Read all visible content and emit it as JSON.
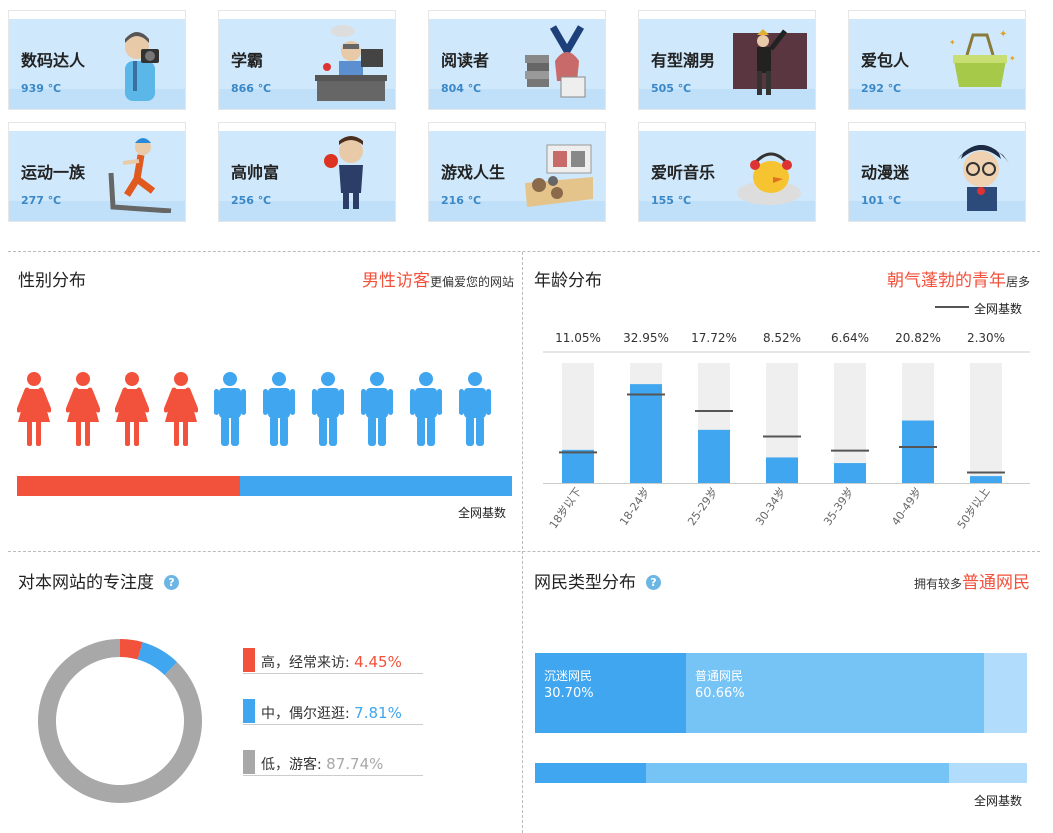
{
  "interest_cards": [
    {
      "name": "数码达人",
      "temp": "939 ℃",
      "icon": "camera-man-icon"
    },
    {
      "name": "学霸",
      "temp": "866 ℃",
      "icon": "student-desk-icon"
    },
    {
      "name": "阅读者",
      "temp": "804 ℃",
      "icon": "reader-books-icon"
    },
    {
      "name": "有型潮男",
      "temp": "505 ℃",
      "icon": "fashion-man-icon"
    },
    {
      "name": "爱包人",
      "temp": "292 ℃",
      "icon": "handbag-icon"
    },
    {
      "name": "运动一族",
      "temp": "277 ℃",
      "icon": "treadmill-runner-icon"
    },
    {
      "name": "高帅富",
      "temp": "256 ℃",
      "icon": "rich-man-icon"
    },
    {
      "name": "游戏人生",
      "temp": "216 ℃",
      "icon": "game-board-icon"
    },
    {
      "name": "爱听音乐",
      "temp": "155 ℃",
      "icon": "music-chick-icon"
    },
    {
      "name": "动漫迷",
      "temp": "101 ℃",
      "icon": "anime-boy-icon"
    }
  ],
  "gender": {
    "title": "性别分布",
    "note_highlight": "男性访客",
    "note_text": "更偏爱您的网站",
    "female_count": 4,
    "male_count": 6,
    "female_share": 0.45,
    "female_color": "#f2513b",
    "male_color": "#3fa6ef",
    "base_label": "全网基数"
  },
  "age": {
    "title": "年龄分布",
    "note_highlight": "朝气蓬勃的青年",
    "note_text": "居多",
    "legend_label": "全网基数"
  },
  "chart_data": {
    "type": "bar",
    "categories": [
      "18岁以下",
      "18-24岁",
      "25-29岁",
      "30-34岁",
      "35-39岁",
      "40-49岁",
      "50岁以上"
    ],
    "value_labels": [
      "11.05%",
      "32.95%",
      "17.72%",
      "8.52%",
      "6.64%",
      "20.82%",
      "2.30%"
    ],
    "values": [
      11.05,
      32.95,
      17.72,
      8.52,
      6.64,
      20.82,
      2.3
    ],
    "baseline": [
      10.2,
      29.5,
      24.0,
      15.5,
      10.8,
      12.0,
      3.5
    ],
    "ylim": [
      0,
      40
    ],
    "bar_color": "#3fa6ef",
    "track_color": "#efefef",
    "baseline_color": "#555555"
  },
  "focus": {
    "title": "对本网站的专注度",
    "help_icon": "?",
    "items": [
      {
        "label": "高，经常来访:",
        "value": "4.45%",
        "share": 4.45,
        "color": "#f2513b"
      },
      {
        "label": "中，偶尔逛逛:",
        "value": "7.81%",
        "share": 7.81,
        "color": "#3fa6ef"
      },
      {
        "label": "低，游客:",
        "value": "87.74%",
        "share": 87.74,
        "color": "#a8a8a8"
      }
    ]
  },
  "netizen": {
    "title": "网民类型分布",
    "help_icon": "?",
    "note_text": "拥有较多",
    "note_highlight": "普通网民",
    "site_segments": [
      {
        "label": "沉迷网民",
        "value": "30.70%",
        "share": 30.7,
        "color": "#3fa6ef"
      },
      {
        "label": "普通网民",
        "value": "60.66%",
        "share": 60.66,
        "color": "#76c3f6"
      },
      {
        "label": "",
        "value": "",
        "share": 8.64,
        "color": "#b2dcfb"
      }
    ],
    "base_segments": [
      {
        "share": 22.5,
        "color": "#3fa6ef"
      },
      {
        "share": 61.7,
        "color": "#76c3f6"
      },
      {
        "share": 15.8,
        "color": "#b2dcfb"
      }
    ],
    "base_label": "全网基数"
  }
}
